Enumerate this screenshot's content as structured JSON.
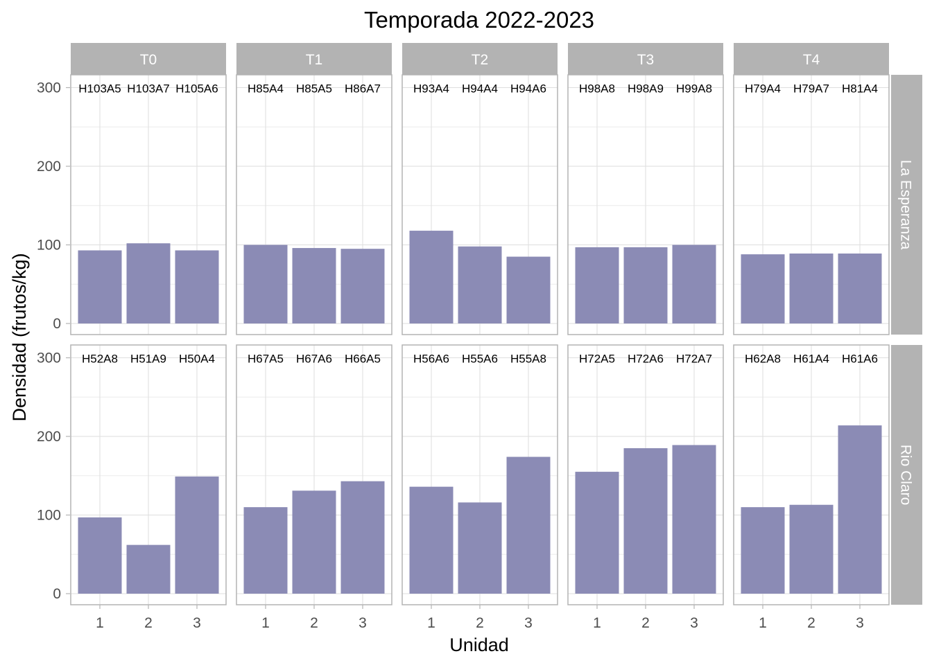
{
  "chart_data": {
    "type": "bar",
    "title": "Temporada 2022-2023",
    "xlabel": "Unidad",
    "ylabel": "Densidad (frutos/kg)",
    "categories": [
      "1",
      "2",
      "3"
    ],
    "ylim": [
      0,
      320
    ],
    "yticks": [
      0,
      100,
      200,
      300
    ],
    "grid": true,
    "bar_color": "#8b8bb5",
    "strip_color": "#b3b3b3",
    "columns": [
      "T0",
      "T1",
      "T2",
      "T3",
      "T4"
    ],
    "rows": [
      "La Esperanza",
      "Rio Claro"
    ],
    "panels": [
      {
        "row": "La Esperanza",
        "col": "T0",
        "labels": [
          "H103A5",
          "H103A7",
          "H105A6"
        ],
        "values": [
          93,
          102,
          93
        ]
      },
      {
        "row": "La Esperanza",
        "col": "T1",
        "labels": [
          "H85A4",
          "H85A5",
          "H86A7"
        ],
        "values": [
          100,
          96,
          95
        ]
      },
      {
        "row": "La Esperanza",
        "col": "T2",
        "labels": [
          "H93A4",
          "H94A4",
          "H94A6"
        ],
        "values": [
          118,
          98,
          85
        ]
      },
      {
        "row": "La Esperanza",
        "col": "T3",
        "labels": [
          "H98A8",
          "H98A9",
          "H99A8"
        ],
        "values": [
          97,
          97,
          100
        ]
      },
      {
        "row": "La Esperanza",
        "col": "T4",
        "labels": [
          "H79A4",
          "H79A7",
          "H81A4"
        ],
        "values": [
          88,
          89,
          89
        ]
      },
      {
        "row": "Rio Claro",
        "col": "T0",
        "labels": [
          "H52A8",
          "H51A9",
          "H50A4"
        ],
        "values": [
          97,
          62,
          149
        ]
      },
      {
        "row": "Rio Claro",
        "col": "T1",
        "labels": [
          "H67A5",
          "H67A6",
          "H66A5"
        ],
        "values": [
          110,
          131,
          143
        ]
      },
      {
        "row": "Rio Claro",
        "col": "T2",
        "labels": [
          "H56A6",
          "H55A6",
          "H55A8"
        ],
        "values": [
          136,
          116,
          174
        ]
      },
      {
        "row": "Rio Claro",
        "col": "T3",
        "labels": [
          "H72A5",
          "H72A6",
          "H72A7"
        ],
        "values": [
          155,
          185,
          189
        ]
      },
      {
        "row": "Rio Claro",
        "col": "T4",
        "labels": [
          "H62A8",
          "H61A4",
          "H61A6"
        ],
        "values": [
          110,
          113,
          214
        ]
      }
    ]
  }
}
